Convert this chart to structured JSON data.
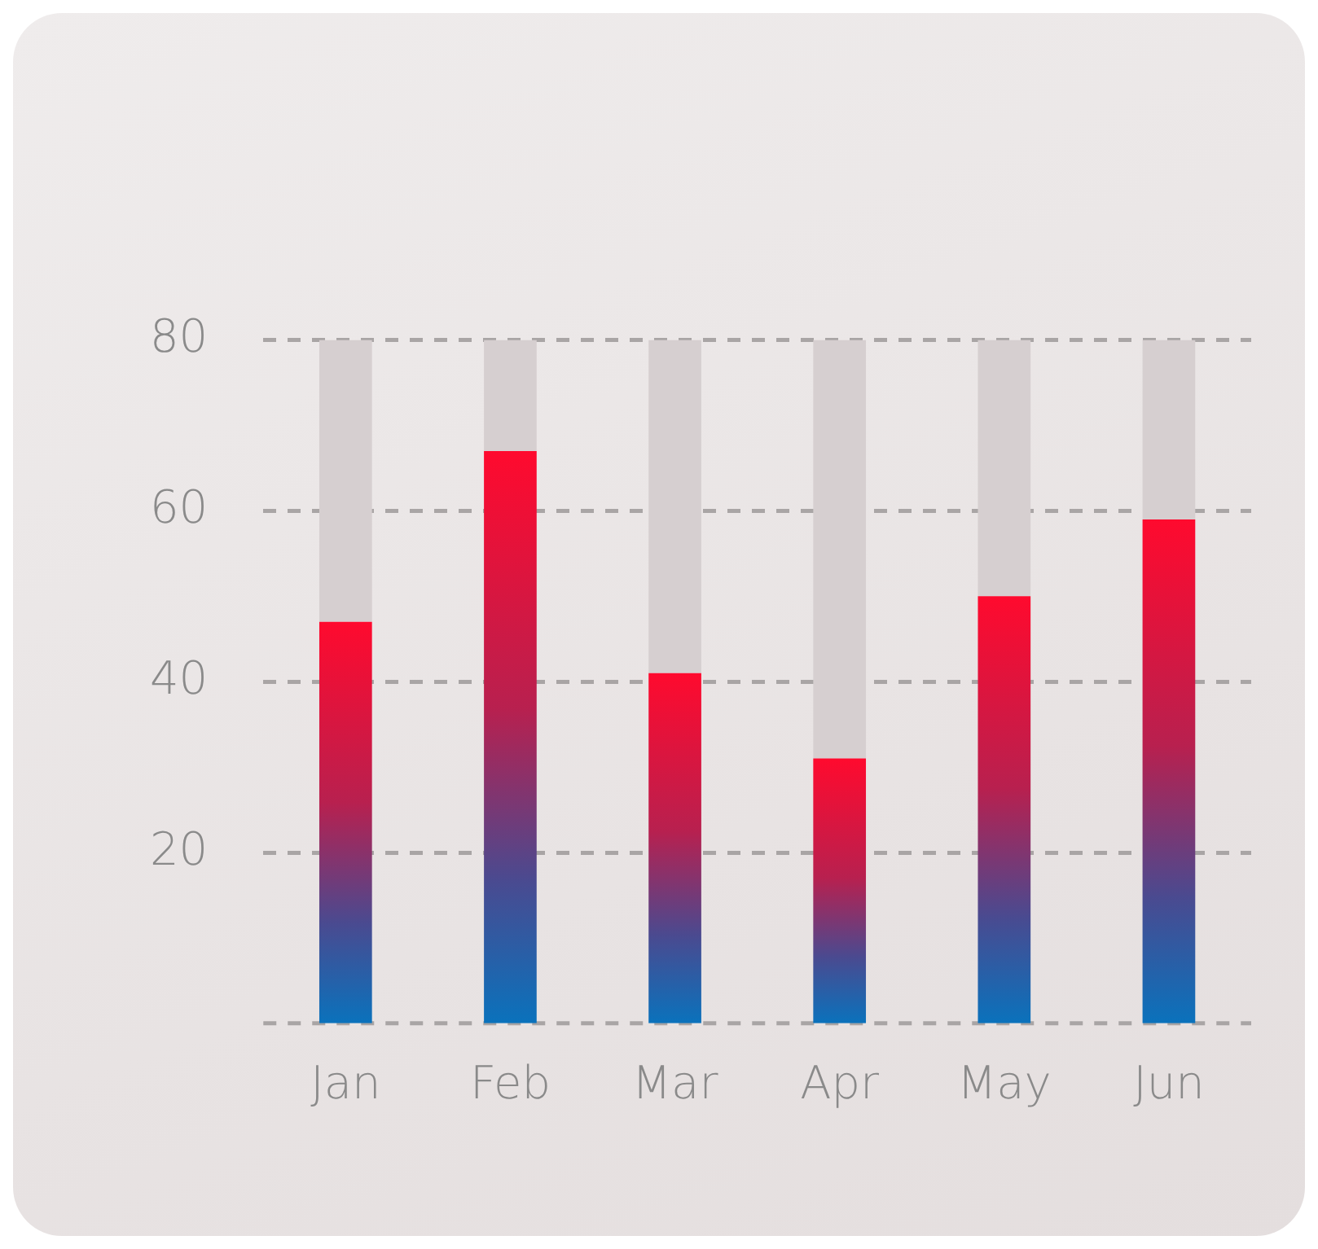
{
  "chart_data": {
    "type": "bar",
    "categories": [
      "Jan",
      "Feb",
      "Mar",
      "Apr",
      "May",
      "Jun"
    ],
    "series": [
      {
        "color": "#ff0a2e",
        "values": [
          47,
          67,
          41,
          31,
          50,
          59
        ]
      },
      {
        "color": "#d6cfd0",
        "values": [
          33,
          13,
          39,
          49,
          30,
          21
        ]
      }
    ],
    "stacked": true,
    "ylim": [
      0,
      80
    ],
    "yticks": [
      20,
      40,
      60,
      80
    ],
    "grid": "y",
    "legend": false
  }
}
